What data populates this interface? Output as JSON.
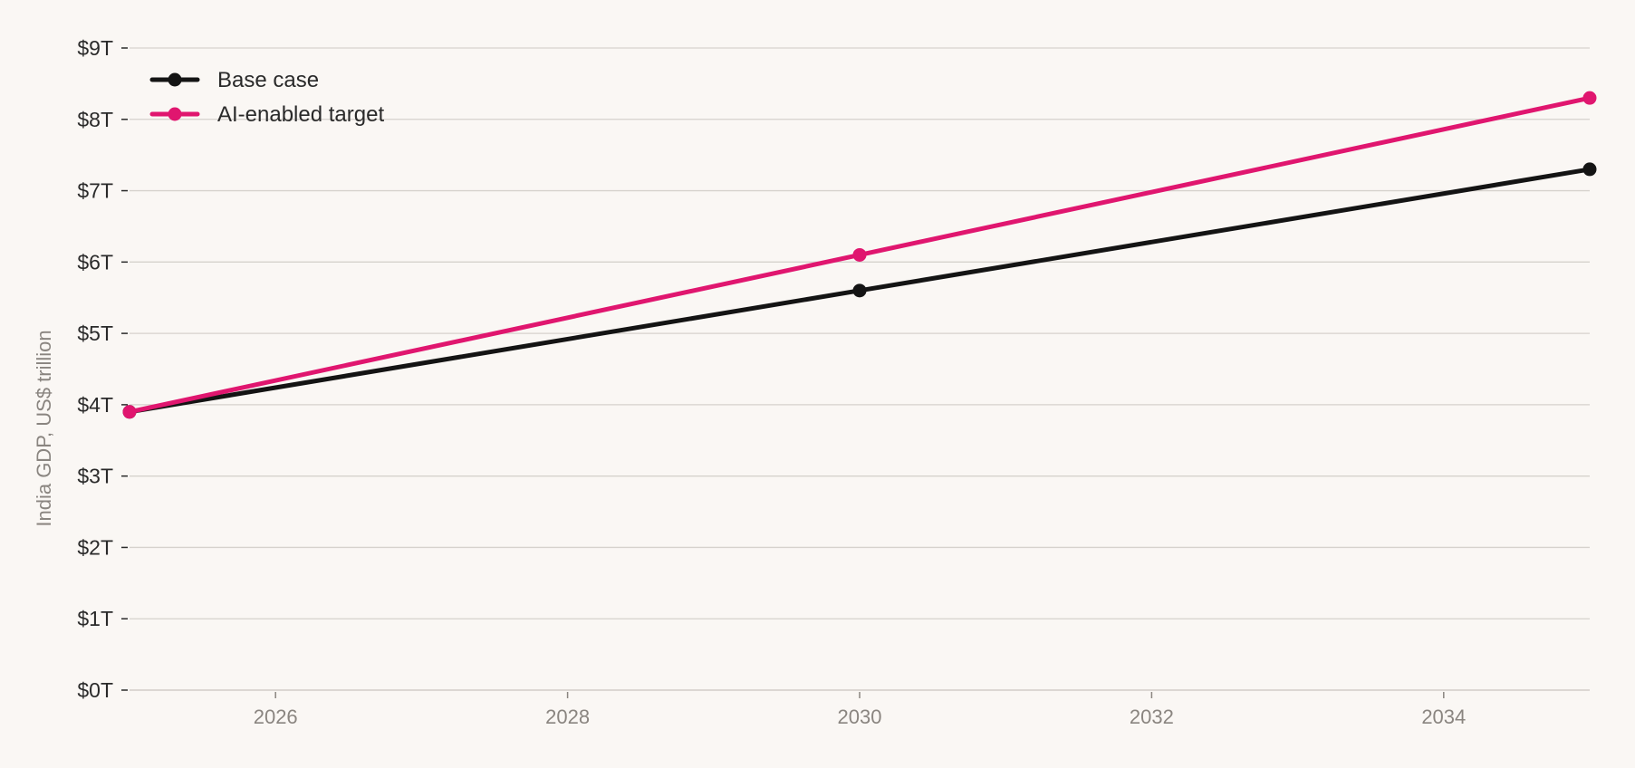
{
  "chart_data": {
    "type": "line",
    "title": "",
    "xlabel": "",
    "ylabel": "India GDP, US$ trillion",
    "x_ticks": [
      "2026",
      "2028",
      "2030",
      "2032",
      "2034"
    ],
    "x_tick_values": [
      2026,
      2028,
      2030,
      2032,
      2034
    ],
    "y_ticks": [
      "$0T",
      "$1T",
      "$2T",
      "$3T",
      "$4T",
      "$5T",
      "$6T",
      "$7T",
      "$8T",
      "$9T"
    ],
    "y_tick_values": [
      0,
      1,
      2,
      3,
      4,
      5,
      6,
      7,
      8,
      9
    ],
    "xlim": [
      2025,
      2035
    ],
    "ylim": [
      0,
      9
    ],
    "grid": "horizontal",
    "legend_position": "top-left",
    "series": [
      {
        "name": "Base case",
        "color": "#141414",
        "x": [
          2025,
          2030,
          2035
        ],
        "values": [
          3.9,
          5.6,
          7.3
        ]
      },
      {
        "name": "AI-enabled target",
        "color": "#e0166f",
        "x": [
          2025,
          2030,
          2035
        ],
        "values": [
          3.9,
          6.1,
          8.3
        ]
      }
    ]
  }
}
